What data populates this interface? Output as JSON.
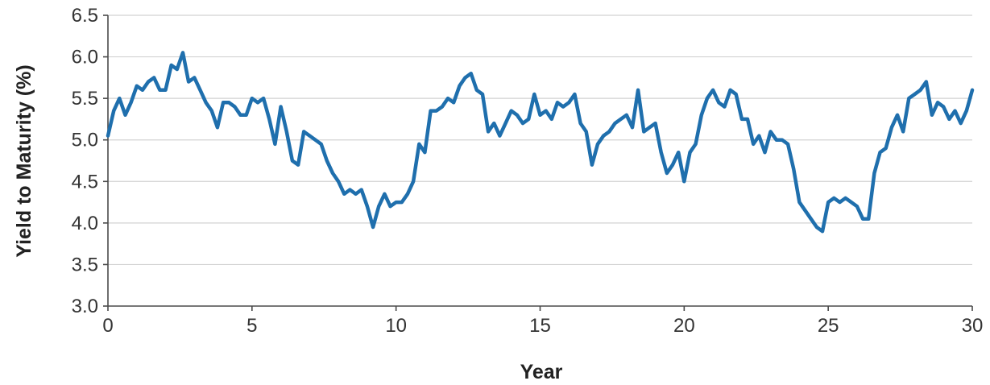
{
  "chart_data": {
    "type": "line",
    "title": "",
    "xlabel": "Year",
    "ylabel": "Yield to Maturity (%)",
    "xlim": [
      0,
      30
    ],
    "ylim": [
      3.0,
      6.5
    ],
    "x_ticks": [
      "0",
      "5",
      "10",
      "15",
      "20",
      "25",
      "30"
    ],
    "y_ticks": [
      "3.0",
      "3.5",
      "4.0",
      "4.5",
      "5.0",
      "5.5",
      "6.0",
      "6.5"
    ],
    "grid": true,
    "legend": "none",
    "line_color": "#1f6fad",
    "series": [
      {
        "x": [
          0,
          0.2,
          0.4,
          0.6,
          0.8,
          1.0,
          1.2,
          1.4,
          1.6,
          1.8,
          2.0,
          2.2,
          2.4,
          2.6,
          2.8,
          3.0,
          3.2,
          3.4,
          3.6,
          3.8,
          4.0,
          4.2,
          4.4,
          4.6,
          4.8,
          5.0,
          5.2,
          5.4,
          5.6,
          5.8,
          6.0,
          6.2,
          6.4,
          6.6,
          6.8,
          7.0,
          7.2,
          7.4,
          7.6,
          7.8,
          8.0,
          8.2,
          8.4,
          8.6,
          8.8,
          9.0,
          9.2,
          9.4,
          9.6,
          9.8,
          10.0,
          10.2,
          10.4,
          10.6,
          10.8,
          11.0,
          11.2,
          11.4,
          11.6,
          11.8,
          12.0,
          12.2,
          12.4,
          12.6,
          12.8,
          13.0,
          13.2,
          13.4,
          13.6,
          13.8,
          14.0,
          14.2,
          14.4,
          14.6,
          14.8,
          15.0,
          15.2,
          15.4,
          15.6,
          15.8,
          16.0,
          16.2,
          16.4,
          16.6,
          16.8,
          17.0,
          17.2,
          17.4,
          17.6,
          17.8,
          18.0,
          18.2,
          18.4,
          18.6,
          18.8,
          19.0,
          19.2,
          19.4,
          19.6,
          19.8,
          20.0,
          20.2,
          20.4,
          20.6,
          20.8,
          21.0,
          21.2,
          21.4,
          21.6,
          21.8,
          22.0,
          22.2,
          22.4,
          22.6,
          22.8,
          23.0,
          23.2,
          23.4,
          23.6,
          23.8,
          24.0,
          24.2,
          24.4,
          24.6,
          24.8,
          25.0,
          25.2,
          25.4,
          25.6,
          25.8,
          26.0,
          26.2,
          26.4,
          26.6,
          26.8,
          27.0,
          27.2,
          27.4,
          27.6,
          27.8,
          28.0,
          28.2,
          28.4,
          28.6,
          28.8,
          29.0,
          29.2,
          29.4,
          29.6,
          29.8,
          30.0
        ],
        "y": [
          5.05,
          5.35,
          5.5,
          5.3,
          5.45,
          5.65,
          5.6,
          5.7,
          5.75,
          5.6,
          5.6,
          5.9,
          5.85,
          6.05,
          5.7,
          5.75,
          5.6,
          5.45,
          5.35,
          5.15,
          5.45,
          5.45,
          5.4,
          5.3,
          5.3,
          5.5,
          5.45,
          5.5,
          5.25,
          4.95,
          5.4,
          5.1,
          4.75,
          4.7,
          5.1,
          5.05,
          5.0,
          4.95,
          4.75,
          4.6,
          4.5,
          4.35,
          4.4,
          4.35,
          4.4,
          4.2,
          3.95,
          4.2,
          4.35,
          4.2,
          4.25,
          4.25,
          4.35,
          4.5,
          4.95,
          4.85,
          5.35,
          5.35,
          5.4,
          5.5,
          5.45,
          5.65,
          5.75,
          5.8,
          5.6,
          5.55,
          5.1,
          5.2,
          5.05,
          5.2,
          5.35,
          5.3,
          5.2,
          5.25,
          5.55,
          5.3,
          5.35,
          5.25,
          5.45,
          5.4,
          5.45,
          5.55,
          5.2,
          5.1,
          4.7,
          4.95,
          5.05,
          5.1,
          5.2,
          5.25,
          5.3,
          5.15,
          5.6,
          5.1,
          5.15,
          5.2,
          4.85,
          4.6,
          4.7,
          4.85,
          4.5,
          4.85,
          4.95,
          5.3,
          5.5,
          5.6,
          5.45,
          5.4,
          5.6,
          5.55,
          5.25,
          5.25,
          4.95,
          5.05,
          4.85,
          5.1,
          5.0,
          5.0,
          4.95,
          4.65,
          4.25,
          4.15,
          4.05,
          3.95,
          3.9,
          4.25,
          4.3,
          4.25,
          4.3,
          4.25,
          4.2,
          4.05,
          4.05,
          4.6,
          4.85,
          4.9,
          5.15,
          5.3,
          5.1,
          5.5,
          5.55,
          5.6,
          5.7,
          5.3,
          5.45,
          5.4,
          5.25,
          5.35,
          5.2,
          5.35,
          5.6
        ]
      }
    ]
  }
}
